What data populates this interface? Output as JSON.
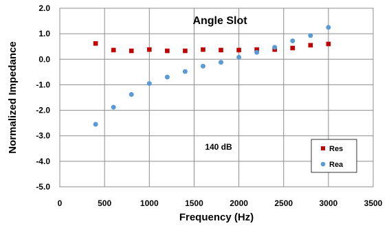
{
  "chart_data": {
    "type": "scatter",
    "title": "Angle Slot",
    "xlabel": "Frequency (Hz)",
    "ylabel": "Normalized Impedance",
    "xlim": [
      0,
      3500
    ],
    "ylim": [
      -5.0,
      2.0
    ],
    "x_ticks": [
      0,
      500,
      1000,
      1500,
      2000,
      2500,
      3000,
      3500
    ],
    "x_tick_labels": [
      "0",
      "500",
      "1000",
      "1500",
      "2000",
      "2500",
      "3000",
      "3500"
    ],
    "y_ticks": [
      2.0,
      1.0,
      0.0,
      -1.0,
      -2.0,
      -3.0,
      -4.0,
      -5.0
    ],
    "y_tick_labels": [
      "2.0",
      "1.0",
      "0.0",
      "-1.0",
      "-2.0",
      "-3.0",
      "-4.0",
      "-5.0"
    ],
    "grid": true,
    "legend_position": "bottom-right",
    "annotation": "140 dB",
    "series": [
      {
        "name": "Res",
        "marker": "square",
        "color": "#c00000",
        "x": [
          400,
          600,
          800,
          1000,
          1200,
          1400,
          1600,
          1800,
          2000,
          2200,
          2400,
          2600,
          2800,
          3000
        ],
        "y": [
          0.62,
          0.36,
          0.33,
          0.38,
          0.33,
          0.33,
          0.38,
          0.36,
          0.36,
          0.38,
          0.38,
          0.44,
          0.55,
          0.6
        ]
      },
      {
        "name": "Rea",
        "marker": "circle",
        "color": "#5b9bd5",
        "x": [
          400,
          600,
          800,
          1000,
          1200,
          1400,
          1600,
          1800,
          2000,
          2200,
          2400,
          2600,
          2800,
          3000
        ],
        "y": [
          -2.55,
          -1.88,
          -1.38,
          -0.95,
          -0.7,
          -0.48,
          -0.27,
          -0.12,
          0.08,
          0.27,
          0.47,
          0.72,
          0.93,
          1.25
        ]
      }
    ]
  }
}
